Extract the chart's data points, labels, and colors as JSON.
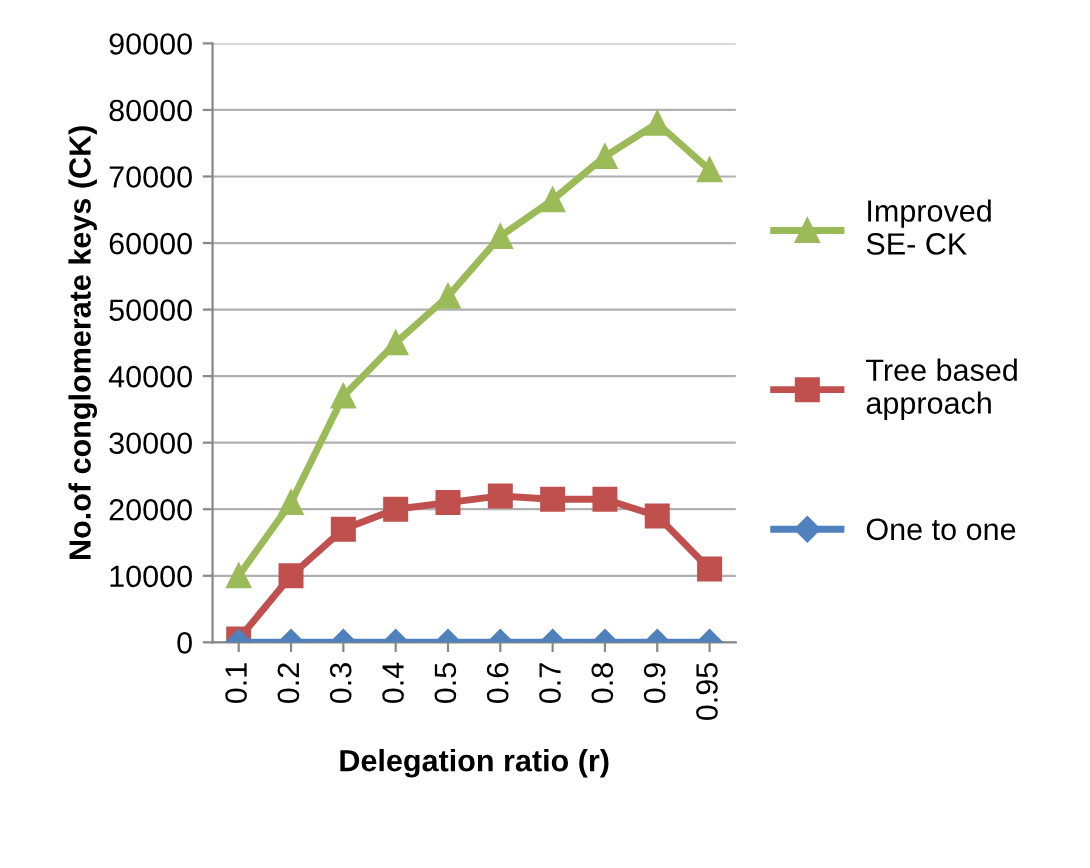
{
  "chart_data": {
    "type": "line",
    "xlabel": "Delegation ratio (r)",
    "ylabel": "No.of conglomerate keys (CK)",
    "categories": [
      "0.1",
      "0.2",
      "0.3",
      "0.4",
      "0.5",
      "0.6",
      "0.7",
      "0.8",
      "0.9",
      "0.95"
    ],
    "series": [
      {
        "name": "Improved\nSE- CK",
        "color": "#9bbb59",
        "marker": "triangle",
        "values": [
          10000,
          21000,
          37000,
          45000,
          52000,
          61000,
          66500,
          73000,
          78000,
          71000
        ]
      },
      {
        "name": "Tree based\napproach",
        "color": "#c0504d",
        "marker": "square",
        "values": [
          500,
          10000,
          17000,
          20000,
          21000,
          22000,
          21500,
          21500,
          19000,
          11000
        ]
      },
      {
        "name": "One to one",
        "color": "#4f81bd",
        "marker": "diamond",
        "values": [
          0,
          0,
          0,
          0,
          0,
          0,
          0,
          0,
          0,
          0
        ]
      }
    ],
    "ylim": [
      0,
      90000
    ],
    "yticks": [
      0,
      10000,
      20000,
      30000,
      40000,
      50000,
      60000,
      70000,
      80000,
      90000
    ],
    "grid": "y",
    "legend": "right",
    "line_style": "solid"
  }
}
